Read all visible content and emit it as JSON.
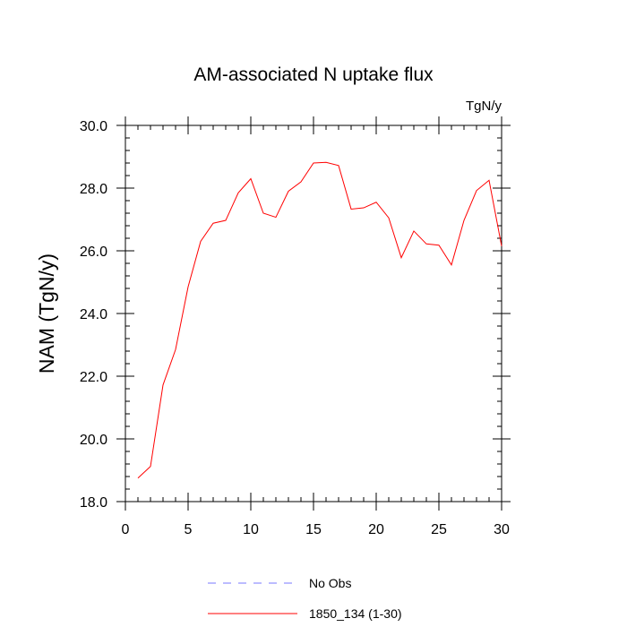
{
  "chart_data": {
    "type": "line",
    "title": "AM-associated N uptake flux",
    "units": "TgN/y",
    "xlabel": "",
    "ylabel": "NAM  (TgN/y)",
    "xlim": [
      0,
      30
    ],
    "ylim": [
      18.0,
      30.0
    ],
    "x_ticks": [
      "0",
      "5",
      "10",
      "15",
      "20",
      "25",
      "30"
    ],
    "y_ticks": [
      "18.0",
      "20.0",
      "22.0",
      "24.0",
      "26.0",
      "28.0",
      "30.0"
    ],
    "x_tick_values": [
      0,
      5,
      10,
      15,
      20,
      25,
      30
    ],
    "y_tick_values": [
      18,
      20,
      22,
      24,
      26,
      28,
      30
    ],
    "x_minor_step": 1,
    "y_minor_step": 0.4,
    "grid": false,
    "legend_position": "bottom",
    "series": [
      {
        "name": "No Obs",
        "color": "#7a7aff",
        "style": "dashed",
        "x": [],
        "y": []
      },
      {
        "name": "1850_134 (1-30)",
        "color": "#ff0000",
        "style": "solid",
        "x": [
          1,
          2,
          3,
          4,
          5,
          6,
          7,
          8,
          9,
          10,
          11,
          12,
          13,
          14,
          15,
          16,
          17,
          18,
          19,
          20,
          21,
          22,
          23,
          24,
          25,
          26,
          27,
          28,
          29,
          30
        ],
        "y": [
          18.75,
          19.12,
          21.72,
          22.85,
          24.85,
          26.3,
          26.88,
          26.97,
          27.85,
          28.3,
          27.2,
          27.07,
          27.9,
          28.2,
          28.8,
          28.82,
          28.72,
          27.33,
          27.37,
          27.55,
          27.05,
          25.78,
          26.63,
          26.22,
          26.18,
          25.55,
          26.97,
          27.92,
          28.25,
          26.15
        ]
      }
    ]
  }
}
